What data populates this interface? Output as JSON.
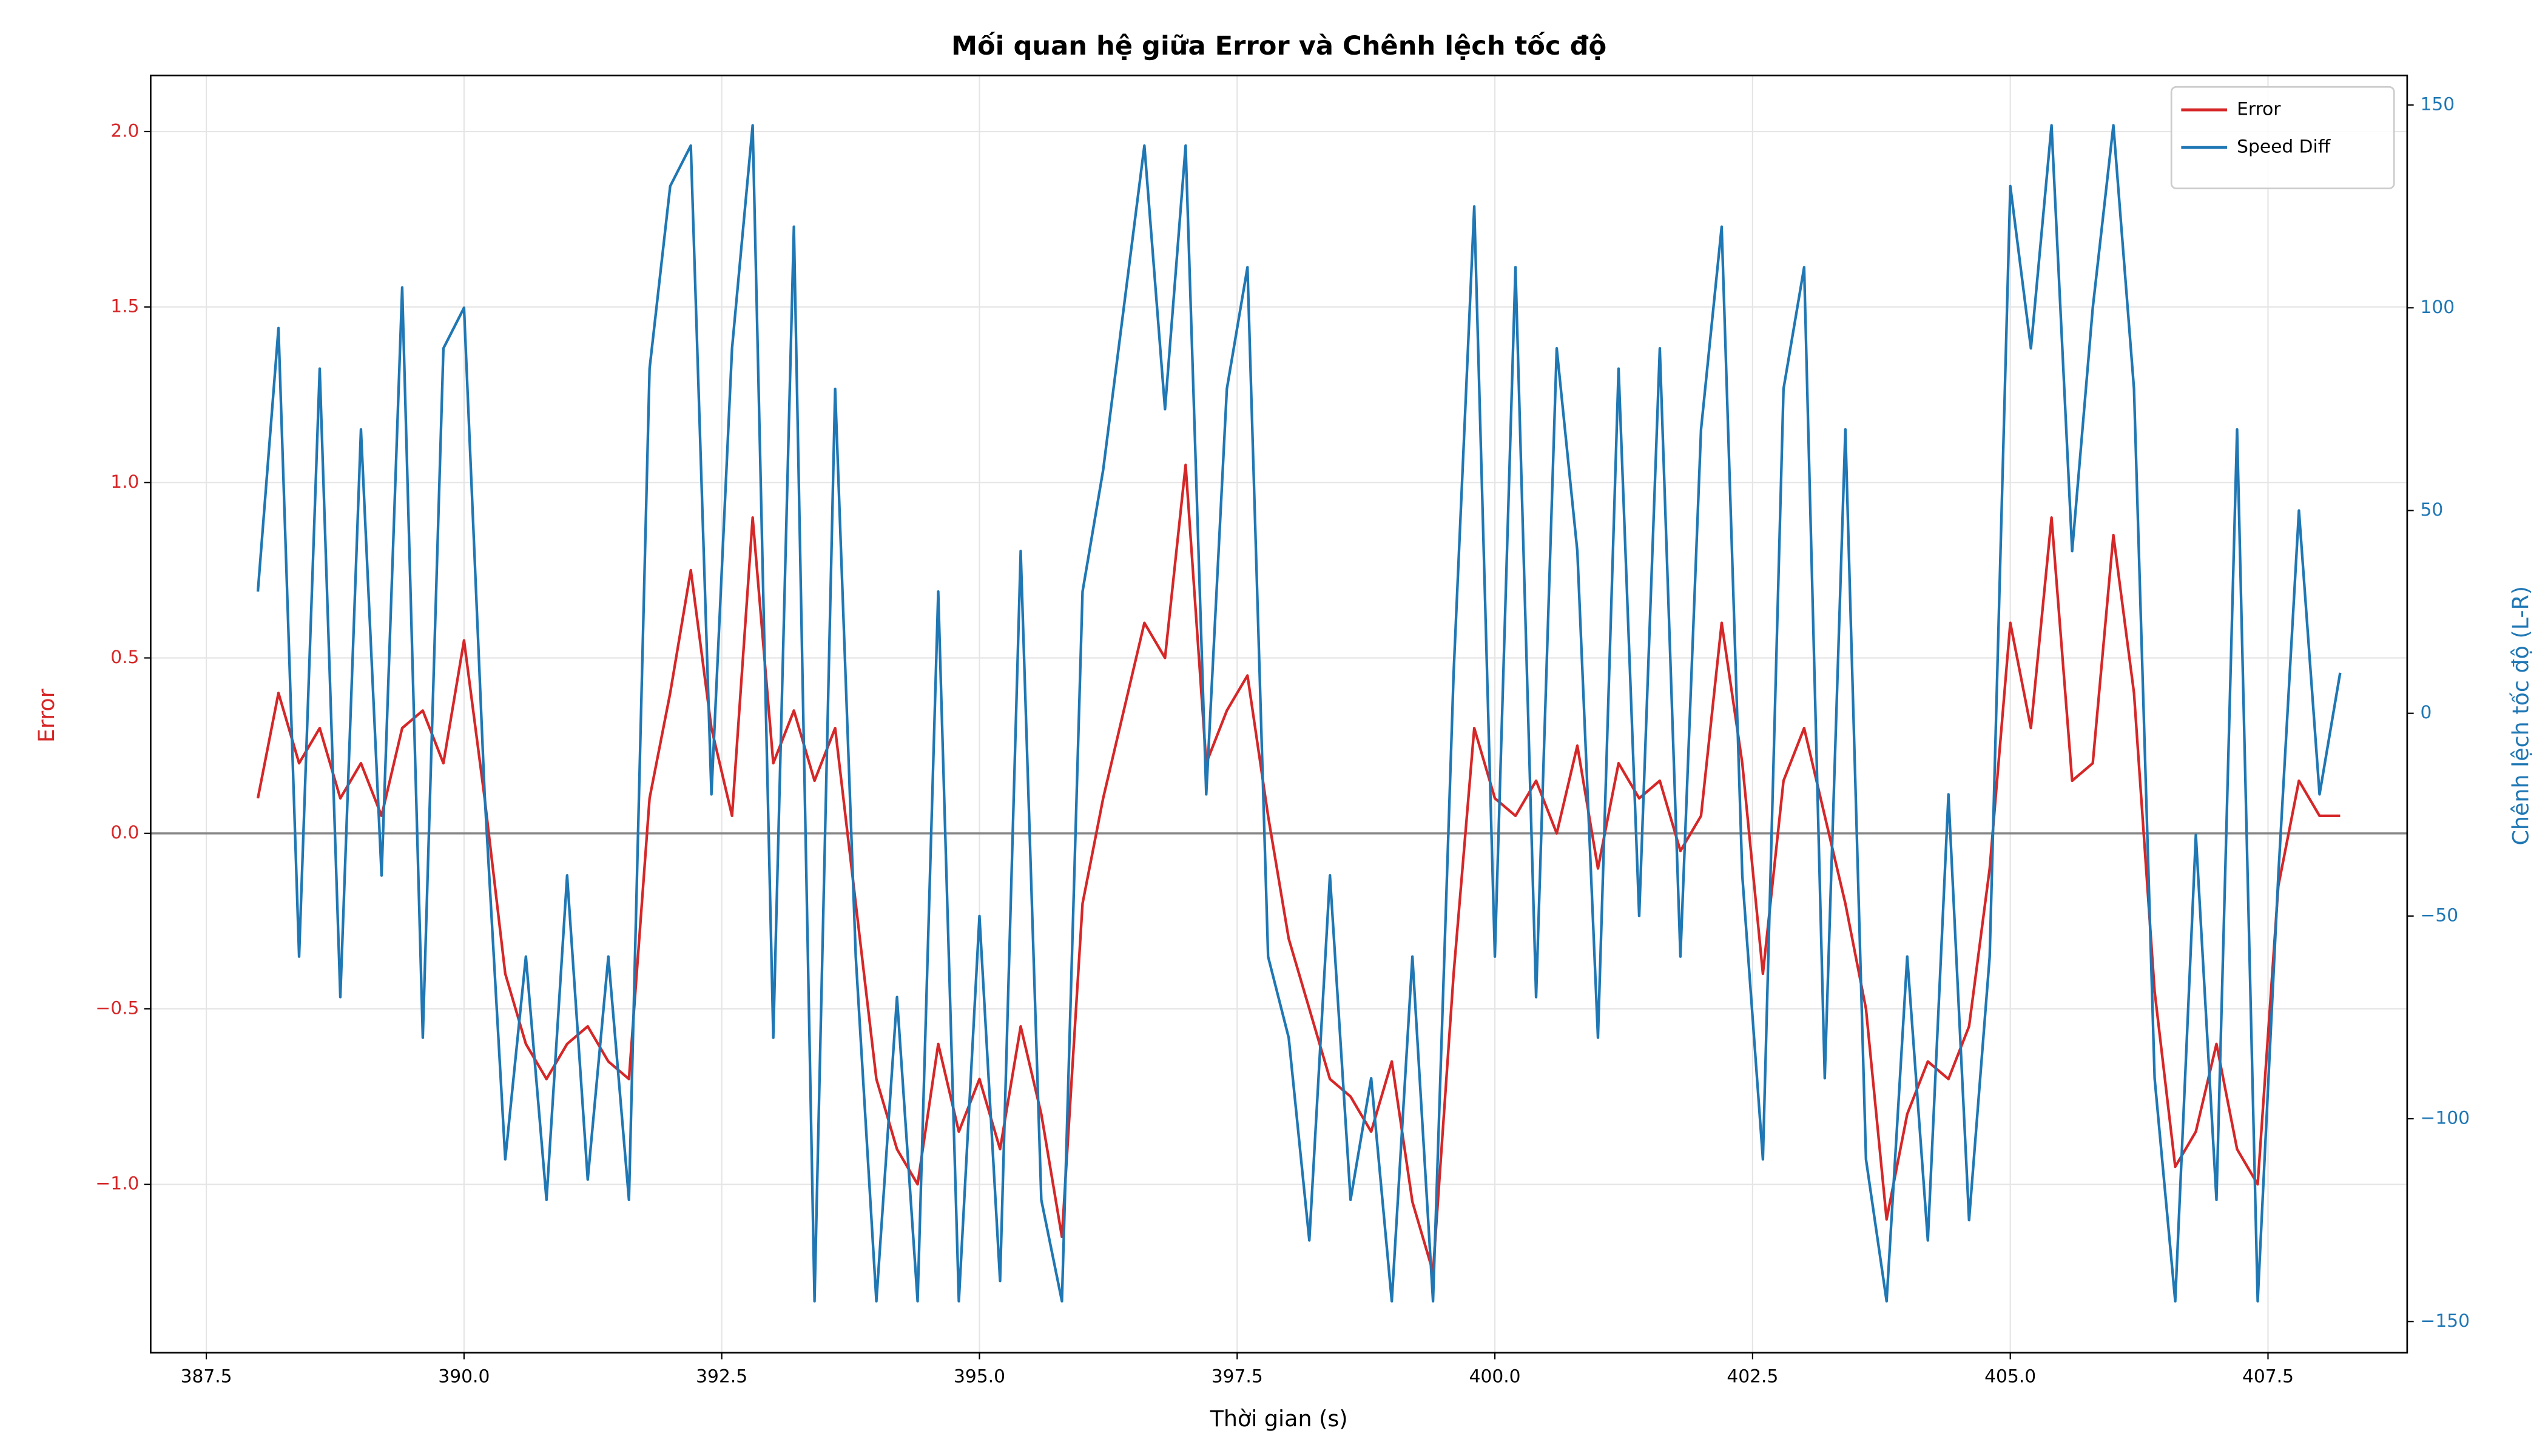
{
  "chart_data": {
    "type": "line",
    "title": "Mối quan hệ giữa Error và Chênh lệch tốc độ",
    "xlabel": "Thời gian (s)",
    "ylabel": "Error",
    "y2label": "Chênh lệch tốc độ (L-R)",
    "x": [
      388.0,
      388.2,
      388.4,
      388.6,
      388.8,
      389.0,
      389.2,
      389.4,
      389.6,
      389.8,
      390.0,
      390.2,
      390.4,
      390.6,
      390.8,
      391.0,
      391.2,
      391.4,
      391.6,
      391.8,
      392.0,
      392.2,
      392.4,
      392.6,
      392.8,
      393.0,
      393.2,
      393.4,
      393.6,
      393.8,
      394.0,
      394.2,
      394.4,
      394.6,
      394.8,
      395.0,
      395.2,
      395.4,
      395.6,
      395.8,
      396.0,
      396.2,
      396.4,
      396.6,
      396.8,
      397.0,
      397.2,
      397.4,
      397.6,
      397.8,
      398.0,
      398.2,
      398.4,
      398.6,
      398.8,
      399.0,
      399.2,
      399.4,
      399.6,
      399.8,
      400.0,
      400.2,
      400.4,
      400.6,
      400.8,
      401.0,
      401.2,
      401.4,
      401.6,
      401.8,
      402.0,
      402.2,
      402.4,
      402.6,
      402.8,
      403.0,
      403.2,
      403.4,
      403.6,
      403.8,
      404.0,
      404.2,
      404.4,
      404.6,
      404.8,
      405.0,
      405.2,
      405.4,
      405.6,
      405.8,
      406.0,
      406.2,
      406.4,
      406.6,
      406.8,
      407.0,
      407.2,
      407.4,
      407.6,
      407.8,
      408.0,
      408.2
    ],
    "series": [
      {
        "name": "Error",
        "color": "#d62728",
        "values": [
          0.1,
          0.4,
          0.2,
          0.3,
          0.1,
          0.2,
          0.05,
          0.3,
          0.35,
          0.2,
          0.55,
          0.1,
          -0.4,
          -0.6,
          -0.7,
          -0.6,
          -0.55,
          -0.65,
          -0.7,
          0.1,
          0.4,
          0.75,
          0.3,
          0.05,
          0.9,
          0.2,
          0.35,
          0.15,
          0.3,
          -0.2,
          -0.7,
          -0.9,
          -1.0,
          -0.6,
          -0.85,
          -0.7,
          -0.9,
          -0.55,
          -0.8,
          -1.15,
          -0.2,
          0.1,
          0.35,
          0.6,
          0.5,
          1.05,
          0.2,
          0.35,
          0.45,
          0.05,
          -0.3,
          -0.5,
          -0.7,
          -0.75,
          -0.85,
          -0.65,
          -1.05,
          -1.25,
          -0.4,
          0.3,
          0.1,
          0.05,
          0.15,
          0.0,
          0.25,
          -0.1,
          0.2,
          0.1,
          0.15,
          -0.05,
          0.05,
          0.6,
          0.2,
          -0.4,
          0.15,
          0.3,
          0.05,
          -0.2,
          -0.5,
          -1.1,
          -0.8,
          -0.65,
          -0.7,
          -0.55,
          -0.1,
          0.6,
          0.3,
          0.9,
          0.15,
          0.2,
          0.85,
          0.4,
          -0.45,
          -0.95,
          -0.85,
          -0.6,
          -0.9,
          -1.0,
          -0.15,
          0.15,
          0.05,
          0.05
        ]
      },
      {
        "name": "Speed Diff",
        "color": "#1f77b4",
        "axis": "y2",
        "values": [
          30,
          95,
          -60,
          85,
          -70,
          70,
          -40,
          105,
          -80,
          90,
          100,
          -20,
          -110,
          -60,
          -120,
          -40,
          -115,
          -60,
          -120,
          85,
          130,
          140,
          -20,
          90,
          145,
          -80,
          120,
          -145,
          80,
          -60,
          -145,
          -70,
          -145,
          30,
          -145,
          -50,
          -140,
          40,
          -120,
          -145,
          30,
          60,
          100,
          140,
          75,
          140,
          -20,
          80,
          110,
          -60,
          -80,
          -130,
          -40,
          -120,
          -90,
          -145,
          -60,
          -145,
          10,
          125,
          -60,
          110,
          -70,
          90,
          40,
          -80,
          85,
          -50,
          90,
          -60,
          70,
          120,
          -40,
          -110,
          80,
          110,
          -90,
          70,
          -110,
          -145,
          -60,
          -130,
          -20,
          -125,
          -60,
          130,
          90,
          145,
          40,
          100,
          145,
          80,
          -90,
          -145,
          -30,
          -120,
          70,
          -145,
          -40,
          50,
          -20,
          10
        ]
      }
    ],
    "xlim": [
      386.96,
      408.85
    ],
    "xticks": [
      {
        "value": 387.5,
        "label": "387.5"
      },
      {
        "value": 390,
        "label": "390.0"
      },
      {
        "value": 392.5,
        "label": "392.5"
      },
      {
        "value": 395,
        "label": "395.0"
      },
      {
        "value": 397.5,
        "label": "397.5"
      },
      {
        "value": 400,
        "label": "400.0"
      },
      {
        "value": 402.5,
        "label": "402.5"
      },
      {
        "value": 405,
        "label": "405.0"
      },
      {
        "value": 407.5,
        "label": "407.5"
      }
    ],
    "ylim": [
      -1.48,
      2.16
    ],
    "yticks": [
      {
        "value": -1,
        "label": "−1.0"
      },
      {
        "value": -0.5,
        "label": "−0.5"
      },
      {
        "value": 0,
        "label": "0.0"
      },
      0.5,
      {
        "value": 1,
        "label": "1.0"
      },
      1.5,
      {
        "value": 2,
        "label": "2.0"
      }
    ],
    "y2lim": [
      -157.7,
      157.3
    ],
    "y2ticks": [
      {
        "value": -150,
        "label": "−150"
      },
      {
        "value": -100,
        "label": "−100"
      },
      {
        "value": -50,
        "label": "−50"
      },
      0,
      50,
      100,
      150
    ],
    "grid": true,
    "zero_line": true,
    "legend": "upper right"
  }
}
